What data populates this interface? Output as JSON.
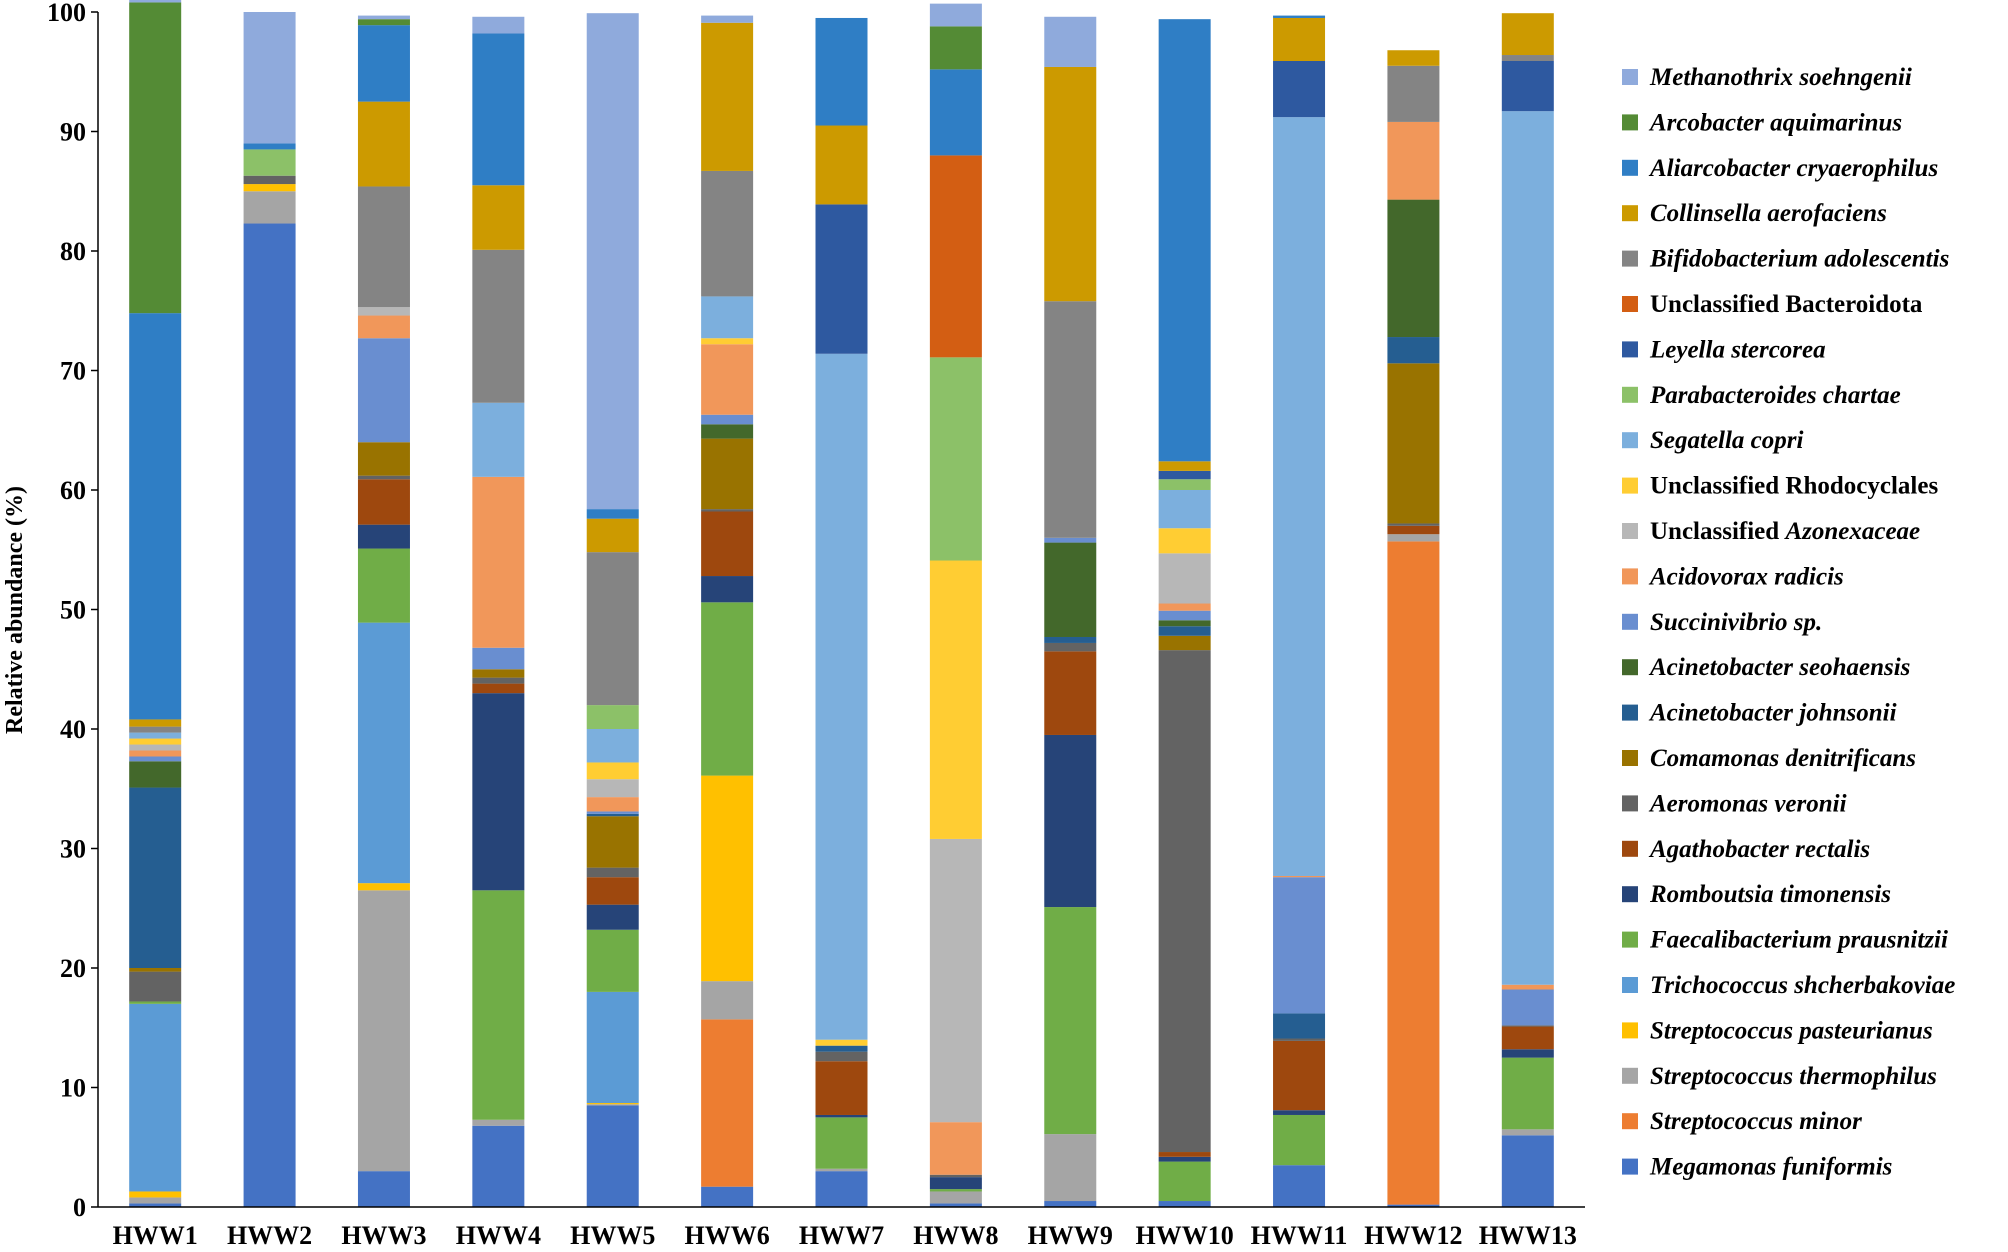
{
  "chart_data": {
    "type": "stacked-bar",
    "title": "",
    "xlabel": "",
    "ylabel": "Relative abundance (%)",
    "ylim": [
      0,
      100
    ],
    "yticks": [
      0,
      10,
      20,
      30,
      40,
      50,
      60,
      70,
      80,
      90,
      100
    ],
    "grid": false,
    "legend_position": "right",
    "categories": [
      "HWW1",
      "HWW2",
      "HWW3",
      "HWW4",
      "HWW5",
      "HWW6",
      "HWW7",
      "HWW8",
      "HWW9",
      "HWW10",
      "HWW11",
      "HWW12",
      "HWW13"
    ],
    "series": [
      {
        "name": "Megamonas funiformis",
        "italic": true,
        "color": "#4472c4",
        "values": [
          0.3,
          82.3,
          3.0,
          6.8,
          8.5,
          1.7,
          3.0,
          0.3,
          0.5,
          0.5,
          3.5,
          0.2,
          6.0
        ]
      },
      {
        "name": "Streptococcus minor",
        "italic": true,
        "color": "#ed7d31",
        "values": [
          0,
          0,
          0,
          0,
          0,
          14.0,
          0,
          0,
          0,
          0,
          0,
          55.5,
          0
        ]
      },
      {
        "name": "Streptococcus thermophilus",
        "italic": true,
        "color": "#a5a5a5",
        "values": [
          0.5,
          2.7,
          23.5,
          0.5,
          0.1,
          3.2,
          0.2,
          1.0,
          5.6,
          0,
          0,
          0.6,
          0.5
        ]
      },
      {
        "name": "Streptococcus pasteurianus",
        "italic": true,
        "color": "#ffc000",
        "values": [
          0.5,
          0.6,
          0.6,
          0,
          0.1,
          17.2,
          0,
          0,
          0,
          0,
          0,
          0,
          0
        ]
      },
      {
        "name": "Trichococcus shcherbakoviae",
        "italic": true,
        "color": "#5b9bd5",
        "values": [
          15.7,
          0,
          21.8,
          0,
          9.3,
          0,
          0,
          0,
          0,
          0,
          0,
          0,
          0
        ]
      },
      {
        "name": "Faecalibacterium prausnitzii",
        "italic": true,
        "color": "#70ad47",
        "values": [
          0.2,
          0,
          6.2,
          19.2,
          5.2,
          14.5,
          4.3,
          0.2,
          19.0,
          3.3,
          4.2,
          0,
          6.0
        ]
      },
      {
        "name": "Romboutsia timonensis",
        "italic": true,
        "color": "#264478",
        "values": [
          0,
          0,
          2.0,
          16.5,
          2.1,
          2.2,
          0.2,
          1.0,
          14.4,
          0.4,
          0.4,
          0,
          0.7
        ]
      },
      {
        "name": "Agathobacter rectalis",
        "italic": true,
        "color": "#9e480e",
        "values": [
          0,
          0,
          3.8,
          0.8,
          2.3,
          5.4,
          4.5,
          0,
          7.0,
          0.4,
          5.8,
          0.7,
          1.9
        ]
      },
      {
        "name": "Aeromonas veronii",
        "italic": true,
        "color": "#636363",
        "values": [
          2.5,
          0.7,
          0.3,
          0.5,
          0.8,
          0.2,
          0.8,
          0.2,
          0.7,
          42.0,
          0.2,
          0.2,
          0.1
        ]
      },
      {
        "name": "Comamonas denitrificans",
        "italic": true,
        "color": "#997300",
        "values": [
          0.3,
          0,
          2.8,
          0.7,
          4.3,
          5.9,
          0,
          0,
          0,
          1.2,
          0,
          13.4,
          0
        ]
      },
      {
        "name": "Acinetobacter johnsonii",
        "italic": true,
        "color": "#255e91",
        "values": [
          15.1,
          0,
          0,
          0,
          0.2,
          0,
          0.5,
          0,
          0.5,
          0.8,
          2.1,
          2.2,
          0
        ]
      },
      {
        "name": "Acinetobacter seohaensis",
        "italic": true,
        "color": "#43682b",
        "values": [
          2.2,
          0,
          0,
          0,
          0,
          1.2,
          0,
          0,
          7.9,
          0.5,
          0,
          11.5,
          0
        ]
      },
      {
        "name": "Succinivibrio sp.",
        "italic": true,
        "color": "#698ed0",
        "values": [
          0.4,
          0,
          8.7,
          1.8,
          0.2,
          0.8,
          0,
          0,
          0.4,
          0.8,
          11.4,
          0,
          3.0
        ]
      },
      {
        "name": "Acidovorax radicis",
        "italic": true,
        "color": "#f1975a",
        "values": [
          0.5,
          0,
          1.9,
          14.3,
          1.2,
          5.9,
          0,
          4.4,
          0,
          0.6,
          0.1,
          6.5,
          0.4
        ]
      },
      {
        "name": "Unclassified Azonexaceae",
        "italic": false,
        "color": "#b7b7b7",
        "values": [
          0.5,
          0,
          0.7,
          0,
          1.5,
          0,
          0,
          23.7,
          0,
          4.2,
          0,
          0,
          0
        ]
      },
      {
        "name": "Unclassified Rhodocyclales",
        "italic": false,
        "color": "#ffcd33",
        "values": [
          0.5,
          0,
          0,
          0,
          1.4,
          0.5,
          0.5,
          23.3,
          0,
          2.1,
          0,
          0,
          0
        ]
      },
      {
        "name": "Segatella copri",
        "italic": true,
        "color": "#7cafdd",
        "values": [
          0.5,
          0,
          0,
          6.2,
          2.8,
          3.5,
          57.4,
          0,
          0,
          3.2,
          63.5,
          0,
          73.1
        ]
      },
      {
        "name": "Parabacteroides chartae",
        "italic": true,
        "color": "#8cc168",
        "values": [
          0,
          2.2,
          0,
          0,
          2.0,
          0,
          0,
          17.0,
          0,
          0.9,
          0,
          0,
          0
        ]
      },
      {
        "name": "Leyella stercorea",
        "italic": true,
        "color": "#2e59a0",
        "values": [
          0,
          0,
          0,
          0,
          0,
          0,
          12.5,
          0,
          0,
          0.7,
          4.7,
          0,
          4.2
        ]
      },
      {
        "name": "Unclassified Bacteroidota",
        "italic": false,
        "color": "#d35e13",
        "values": [
          0,
          0,
          0,
          0,
          0,
          0,
          0,
          16.9,
          0,
          0,
          0,
          0,
          0
        ]
      },
      {
        "name": "Bifidobacterium adolescentis",
        "italic": true,
        "color": "#848484",
        "values": [
          0.5,
          0,
          10.1,
          12.8,
          12.8,
          10.5,
          0,
          0,
          19.8,
          0,
          0,
          4.7,
          0.5
        ]
      },
      {
        "name": "Collinsella aerofaciens",
        "italic": true,
        "color": "#cc9a00",
        "values": [
          0.6,
          0,
          7.1,
          5.4,
          2.8,
          12.4,
          6.6,
          0,
          19.6,
          0.8,
          3.6,
          1.3,
          3.5
        ]
      },
      {
        "name": "Aliarcobacter cryaerophilus",
        "italic": true,
        "color": "#2f7ec5",
        "values": [
          34.0,
          0.5,
          6.4,
          12.7,
          0.8,
          0,
          9.0,
          7.2,
          0,
          37.0,
          0.2,
          0,
          0
        ]
      },
      {
        "name": "Arcobacter aquimarinus",
        "italic": true,
        "color": "#548b35",
        "values": [
          26.0,
          0,
          0.5,
          0,
          0,
          0,
          0,
          3.6,
          0,
          0,
          0,
          0,
          0
        ]
      },
      {
        "name": "Methanothrix soehngenii",
        "italic": true,
        "color": "#8faadc",
        "values": [
          0.4,
          11.0,
          0.3,
          1.4,
          41.5,
          0.6,
          0,
          1.9,
          4.2,
          0,
          0,
          0,
          0
        ]
      }
    ]
  }
}
